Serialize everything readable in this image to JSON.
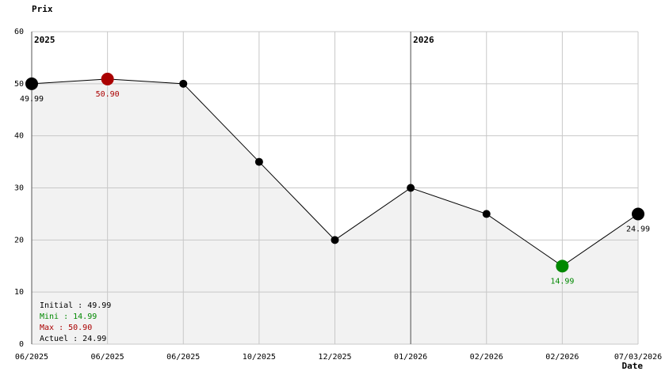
{
  "chart_data": {
    "type": "line",
    "y_label": "Prix",
    "x_label": "Date",
    "categories": [
      "06/2025",
      "06/2025",
      "06/2025",
      "10/2025",
      "12/2025",
      "01/2026",
      "02/2026",
      "02/2026",
      "07/03/2026"
    ],
    "year_labels": [
      "2025",
      null,
      null,
      null,
      null,
      "2026",
      null,
      null,
      null
    ],
    "values": [
      49.99,
      50.9,
      50,
      35,
      20,
      30,
      25,
      14.99,
      24.99
    ],
    "value_labels": [
      "49.99",
      "50.90",
      null,
      null,
      null,
      null,
      null,
      "14.99",
      "24.99"
    ],
    "point_colors": [
      "#000000",
      "#aa0000",
      "#000000",
      "#000000",
      "#000000",
      "#000000",
      "#000000",
      "#008800",
      "#000000"
    ],
    "color": "#000000",
    "area_color": "#f2f2f2",
    "ylim": [
      0,
      60
    ],
    "yticks": [
      0,
      10,
      20,
      30,
      40,
      50,
      60
    ],
    "grid": true,
    "summary": [
      {
        "text": "Initial : 49.99",
        "color": "#000000"
      },
      {
        "text": "Mini : 14.99",
        "color": "#008800"
      },
      {
        "text": "Max : 50.90",
        "color": "#aa0000"
      },
      {
        "text": "Actuel : 24.99",
        "color": "#000000"
      }
    ]
  }
}
